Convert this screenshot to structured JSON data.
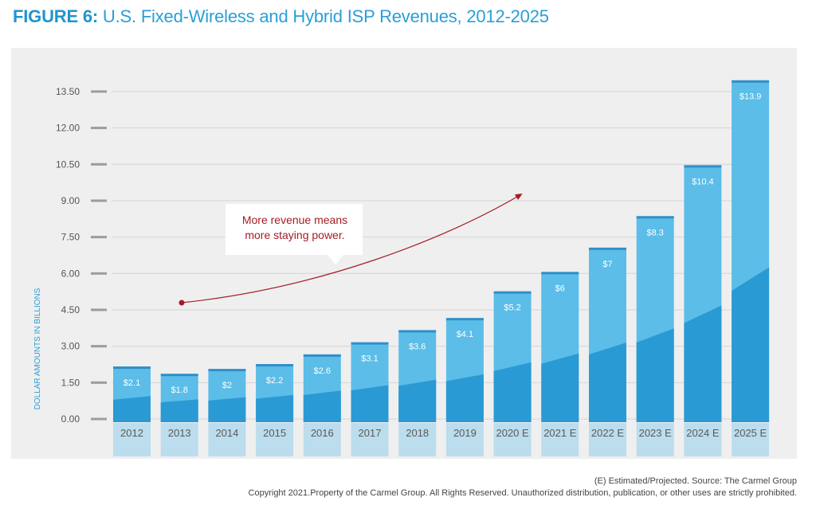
{
  "title_prefix": "FIGURE 6:",
  "title_text": "U.S. Fixed-Wireless and Hybrid ISP Revenues, 2012-2025",
  "source_note": "(E) Estimated/Projected. Source: The Carmel Group",
  "copyright": "Copyright 2021.Property of the Carmel Group.  All Rights Reserved. Unauthorized distribution, publication, or other uses are strictly prohibited.",
  "colors": {
    "panel": "#efeff0",
    "bar_light": "#5bbde8",
    "bar_dark": "#2a9ad4",
    "bar_top": "#2f8fc8",
    "axis_text": "#555555",
    "ylabel": "#2a9fd6",
    "annotation": "#a51c24"
  },
  "annotation": {
    "line1": "More revenue means",
    "line2": "more staying power."
  },
  "chart_data": {
    "type": "bar",
    "title": "U.S. Fixed-Wireless and Hybrid ISP Revenues, 2012-2025",
    "xlabel": "",
    "ylabel": "DOLLAR AMOUNTS IN BILLIONS",
    "ylim": [
      0,
      13.5
    ],
    "yticks": [
      "0.00",
      "1.50",
      "3.00",
      "4.50",
      "6.00",
      "7.50",
      "9.00",
      "10.50",
      "12.00",
      "13.50"
    ],
    "categories": [
      "2012",
      "2013",
      "2014",
      "2015",
      "2016",
      "2017",
      "2018",
      "2019",
      "2020 E",
      "2021 E",
      "2022 E",
      "2023 E",
      "2024 E",
      "2025 E"
    ],
    "values": [
      2.1,
      1.8,
      2,
      2.2,
      2.6,
      3.1,
      3.6,
      4.1,
      5.2,
      6,
      7,
      8.3,
      10.4,
      13.9
    ],
    "data_labels": [
      "$2.1",
      "$1.8",
      "$2",
      "$2.2",
      "$2.6",
      "$3.1",
      "$3.6",
      "$4.1",
      "$5.2",
      "$6",
      "$7",
      "$8.3",
      "$10.4",
      "$13.9"
    ],
    "grid": true,
    "legend": "none"
  }
}
